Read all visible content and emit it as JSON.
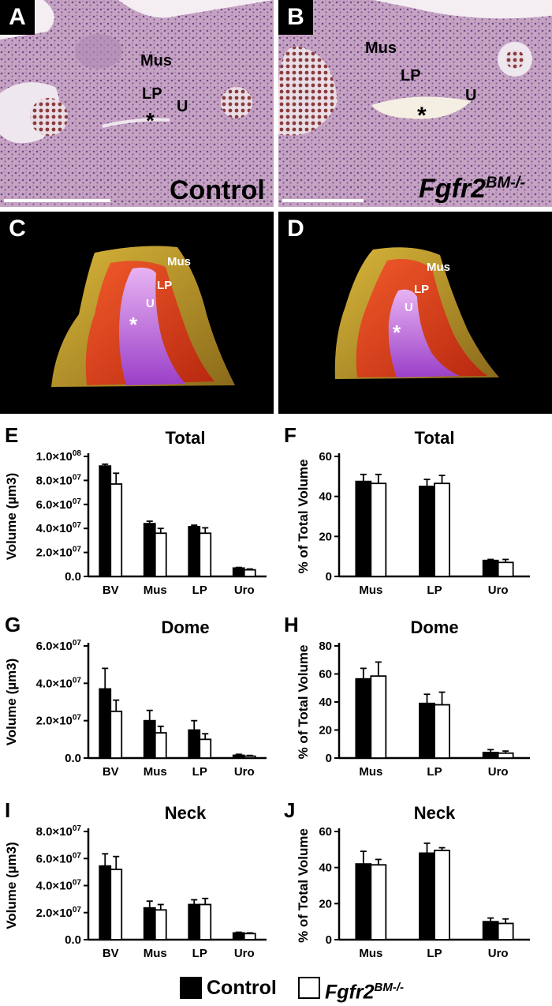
{
  "panels": {
    "A": {
      "letter": "A",
      "labels": {
        "mus": "Mus",
        "lp": "LP",
        "u": "U",
        "star": "*"
      },
      "caption": "Control"
    },
    "B": {
      "letter": "B",
      "labels": {
        "mus": "Mus",
        "lp": "LP",
        "u": "U",
        "star": "*"
      },
      "caption_main": "Fgfr2",
      "caption_sup": "BM-/-"
    },
    "C": {
      "letter": "C",
      "labels": {
        "mus": "Mus",
        "lp": "LP",
        "u": "U",
        "star": "*"
      }
    },
    "D": {
      "letter": "D",
      "labels": {
        "mus": "Mus",
        "lp": "LP",
        "u": "U",
        "star": "*"
      }
    }
  },
  "colors": {
    "control": "#000000",
    "mutant": "#ffffff",
    "background": "#000000",
    "mus3d": "#c9a532",
    "lp3d": "#e2401f",
    "uro3d": "#b85ae0",
    "histo": "#c9a4c6"
  },
  "legend": {
    "control": "Control",
    "mutant_main": "Fgfr2",
    "mutant_sup": "BM-/-"
  },
  "chart_data": [
    {
      "id": "E",
      "letter": "E",
      "type": "bar",
      "title": "Total",
      "ylabel": "Volume (µm3)",
      "scale": "sci",
      "categories": [
        "BV",
        "Mus",
        "LP",
        "Uro"
      ],
      "ylim": [
        0,
        100000000
      ],
      "yticks": [
        0,
        20000000,
        40000000,
        60000000,
        80000000,
        100000000
      ],
      "ytick_labels": [
        "0.0",
        "2.0×10",
        "4.0×10",
        "6.0×10",
        "8.0×10",
        "1.0×10"
      ],
      "ytick_exps": [
        "",
        "07",
        "07",
        "07",
        "07",
        "08"
      ],
      "series": [
        {
          "name": "Control",
          "values": [
            92000000,
            44000000,
            41500000,
            7000000
          ],
          "errors": [
            1500000,
            2000000,
            1200000,
            500000
          ]
        },
        {
          "name": "Fgfr2BM-/-",
          "values": [
            77000000,
            36000000,
            36000000,
            5500000
          ],
          "errors": [
            9000000,
            4000000,
            4500000,
            700000
          ]
        }
      ]
    },
    {
      "id": "F",
      "letter": "F",
      "type": "bar",
      "title": "Total",
      "ylabel": "% of Total Volume",
      "scale": "linear",
      "categories": [
        "Mus",
        "LP",
        "Uro"
      ],
      "ylim": [
        0,
        60
      ],
      "yticks": [
        0,
        20,
        40,
        60
      ],
      "ytick_labels": [
        "0",
        "20",
        "40",
        "60"
      ],
      "series": [
        {
          "name": "Control",
          "values": [
            47.5,
            45,
            8
          ],
          "errors": [
            3.5,
            3.5,
            0.5
          ]
        },
        {
          "name": "Fgfr2BM-/-",
          "values": [
            46.5,
            46.5,
            7
          ],
          "errors": [
            4.5,
            4,
            1.5
          ]
        }
      ]
    },
    {
      "id": "G",
      "letter": "G",
      "type": "bar",
      "title": "Dome",
      "ylabel": "Volume (µm3)",
      "scale": "sci",
      "categories": [
        "BV",
        "Mus",
        "LP",
        "Uro"
      ],
      "ylim": [
        0,
        60000000
      ],
      "yticks": [
        0,
        20000000,
        40000000,
        60000000
      ],
      "ytick_labels": [
        "0.0",
        "2.0×10",
        "4.0×10",
        "6.0×10"
      ],
      "ytick_exps": [
        "",
        "07",
        "07",
        "07"
      ],
      "series": [
        {
          "name": "Control",
          "values": [
            37000000,
            20000000,
            15000000,
            1500000
          ],
          "errors": [
            11000000,
            5500000,
            5000000,
            500000
          ]
        },
        {
          "name": "Fgfr2BM-/-",
          "values": [
            25000000,
            13500000,
            10000000,
            1000000
          ],
          "errors": [
            6000000,
            3500000,
            3000000,
            400000
          ]
        }
      ]
    },
    {
      "id": "H",
      "letter": "H",
      "type": "bar",
      "title": "Dome",
      "ylabel": "% of Total Volume",
      "scale": "linear",
      "categories": [
        "Mus",
        "LP",
        "Uro"
      ],
      "ylim": [
        0,
        80
      ],
      "yticks": [
        0,
        20,
        40,
        60,
        80
      ],
      "ytick_labels": [
        "0",
        "20",
        "40",
        "60",
        "80"
      ],
      "series": [
        {
          "name": "Control",
          "values": [
            56.5,
            39,
            4
          ],
          "errors": [
            7.5,
            6.5,
            2
          ]
        },
        {
          "name": "Fgfr2BM-/-",
          "values": [
            58.5,
            38,
            3.5
          ],
          "errors": [
            10,
            9,
            1.5
          ]
        }
      ]
    },
    {
      "id": "I",
      "letter": "I",
      "type": "bar",
      "title": "Neck",
      "ylabel": "Volume (µm3)",
      "scale": "sci",
      "categories": [
        "BV",
        "Mus",
        "LP",
        "Uro"
      ],
      "ylim": [
        0,
        80000000
      ],
      "yticks": [
        0,
        20000000,
        40000000,
        60000000,
        80000000
      ],
      "ytick_labels": [
        "0.0",
        "2.0×10",
        "4.0×10",
        "6.0×10",
        "8.0×10"
      ],
      "ytick_exps": [
        "",
        "07",
        "07",
        "07",
        "07"
      ],
      "series": [
        {
          "name": "Control",
          "values": [
            54500000,
            23500000,
            26000000,
            5000000
          ],
          "errors": [
            9000000,
            5000000,
            3500000,
            500000
          ]
        },
        {
          "name": "Fgfr2BM-/-",
          "values": [
            52000000,
            22000000,
            26000000,
            4500000
          ],
          "errors": [
            9500000,
            4000000,
            4500000,
            500000
          ]
        }
      ]
    },
    {
      "id": "J",
      "letter": "J",
      "type": "bar",
      "title": "Neck",
      "ylabel": "% of Total Volume",
      "scale": "linear",
      "categories": [
        "Mus",
        "LP",
        "Uro"
      ],
      "ylim": [
        0,
        60
      ],
      "yticks": [
        0,
        20,
        40,
        60
      ],
      "ytick_labels": [
        "0",
        "20",
        "40",
        "60"
      ],
      "series": [
        {
          "name": "Control",
          "values": [
            42,
            48,
            10
          ],
          "errors": [
            7,
            5.5,
            2
          ]
        },
        {
          "name": "Fgfr2BM-/-",
          "values": [
            41.5,
            49.5,
            9
          ],
          "errors": [
            3,
            1.5,
            2.5
          ]
        }
      ]
    }
  ]
}
